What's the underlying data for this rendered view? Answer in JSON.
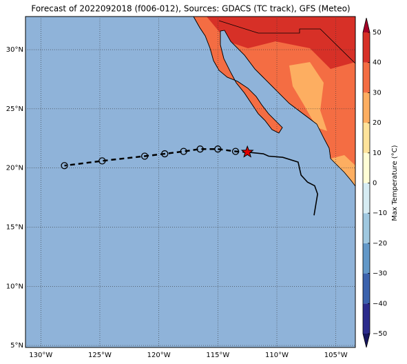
{
  "chart_data": {
    "type": "map",
    "title": "Forecast of 2022092018 (f006-012), Sources: GDACS (TC track), GFS (Meteo)",
    "xlim": [
      -131.3,
      -103.35
    ],
    "ylim": [
      4.83,
      32.8
    ],
    "xticks": [
      {
        "value": -130,
        "label": "130°W"
      },
      {
        "value": -125,
        "label": "125°W"
      },
      {
        "value": -120,
        "label": "120°W"
      },
      {
        "value": -115,
        "label": "115°W"
      },
      {
        "value": -110,
        "label": "110°W"
      },
      {
        "value": -105,
        "label": "105°W"
      }
    ],
    "yticks": [
      {
        "value": 5,
        "label": "5°N"
      },
      {
        "value": 10,
        "label": "10°N"
      },
      {
        "value": 15,
        "label": "15°N"
      },
      {
        "value": 20,
        "label": "20°N"
      },
      {
        "value": 25,
        "label": "25°N"
      },
      {
        "value": 30,
        "label": "30°N"
      }
    ],
    "grid": true,
    "ocean_color": "#8fb3d9",
    "forecast_track": {
      "color": "#000000",
      "x": [
        -112.5,
        -113.5,
        -115.0,
        -116.5,
        -117.9,
        -119.5,
        -121.2,
        -124.8,
        -128.0
      ],
      "y": [
        21.34,
        21.4,
        21.6,
        21.6,
        21.4,
        21.2,
        21.0,
        20.6,
        20.2
      ]
    },
    "current_position_color": "#e00000",
    "past_track": {
      "color": "#000000",
      "x": [
        -106.85,
        -106.7,
        -106.55,
        -106.8,
        -107.4,
        -107.95,
        -108.2,
        -109.5,
        -110.7,
        -111.15,
        -112.5
      ],
      "y": [
        16.0,
        16.9,
        17.8,
        18.5,
        18.8,
        19.4,
        20.5,
        20.9,
        21.0,
        21.2,
        21.34
      ]
    },
    "colorbar": {
      "label": "Max Temperature (°C)",
      "clim": [
        -50,
        50
      ],
      "ticks": [
        {
          "value": -50,
          "label": "−50"
        },
        {
          "value": -40,
          "label": "−40"
        },
        {
          "value": -30,
          "label": "−30"
        },
        {
          "value": -20,
          "label": "−20"
        },
        {
          "value": -10,
          "label": "−10"
        },
        0,
        10,
        20,
        30,
        40,
        50
      ],
      "colors": [
        "#2b2b8c",
        "#3b62ad",
        "#6298c8",
        "#9fc8e0",
        "#d6ecf3",
        "#fffed6",
        "#fee39b",
        "#fdae61",
        "#f46d43",
        "#d73027"
      ],
      "under_color": "#16165e",
      "over_color": "#a50026"
    }
  }
}
